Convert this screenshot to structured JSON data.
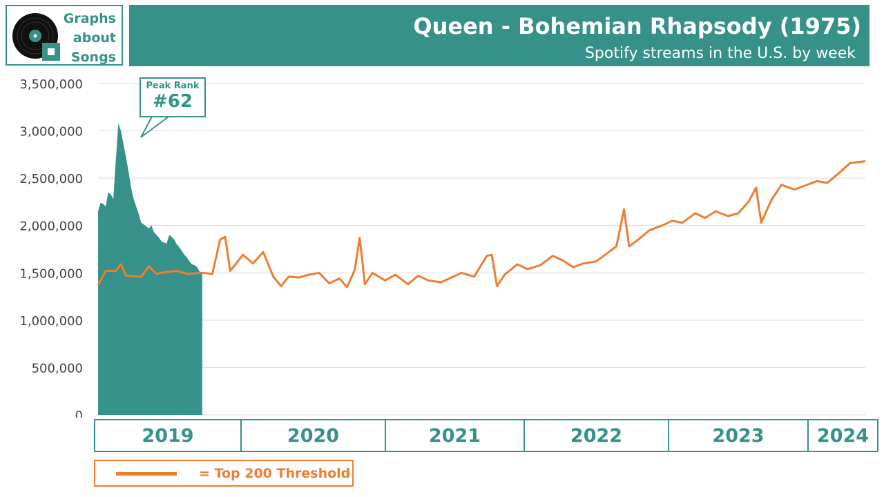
{
  "logo": {
    "line1": "Graphs",
    "line2": "about",
    "line3": "Songs",
    "icon": "vinyl-record-icon"
  },
  "header": {
    "title": "Queen - Bohemian Rhapsody (1975)",
    "subtitle": "Spotify streams in the U.S. by week"
  },
  "callout": {
    "label": "Peak Rank",
    "value": "#62"
  },
  "years": [
    "2019",
    "2020",
    "2021",
    "2022",
    "2023",
    "2024"
  ],
  "legend": {
    "text": "= Top 200 Threshold"
  },
  "colors": {
    "teal": "#359189",
    "orange": "#ED7D31",
    "grid": "#D9D9D9",
    "axis_text": "#404040"
  },
  "chart_data": {
    "type": "area",
    "title": "Queen - Bohemian Rhapsody (1975)",
    "subtitle": "Spotify streams in the U.S. by week",
    "ylim": [
      0,
      3500000
    ],
    "yticks": [
      0,
      500000,
      1000000,
      1500000,
      2000000,
      2500000,
      3000000,
      3500000
    ],
    "ytick_labels": [
      "0",
      "500,000",
      "1,000,000",
      "1,500,000",
      "2,000,000",
      "2,500,000",
      "3,000,000",
      "3,500,000"
    ],
    "x_start": "2019-01-04",
    "x_end": "2024-10-18",
    "grid": true,
    "series": [
      {
        "name": "streams",
        "kind": "area",
        "color": "#359189",
        "points": [
          [
            "2019-01-04",
            2150000
          ],
          [
            "2019-01-11",
            2240000
          ],
          [
            "2019-01-18",
            2230000
          ],
          [
            "2019-01-25",
            2200000
          ],
          [
            "2019-02-01",
            2350000
          ],
          [
            "2019-02-08",
            2330000
          ],
          [
            "2019-02-15",
            2280000
          ],
          [
            "2019-02-22",
            2700000
          ],
          [
            "2019-03-01",
            3080000
          ],
          [
            "2019-03-08",
            3000000
          ],
          [
            "2019-03-15",
            2860000
          ],
          [
            "2019-03-22",
            2720000
          ],
          [
            "2019-03-29",
            2570000
          ],
          [
            "2019-04-05",
            2400000
          ],
          [
            "2019-04-12",
            2280000
          ],
          [
            "2019-04-19",
            2200000
          ],
          [
            "2019-04-26",
            2120000
          ],
          [
            "2019-05-03",
            2030000
          ],
          [
            "2019-05-10",
            2010000
          ],
          [
            "2019-05-17",
            1990000
          ],
          [
            "2019-05-24",
            1970000
          ],
          [
            "2019-05-31",
            2000000
          ],
          [
            "2019-06-07",
            1930000
          ],
          [
            "2019-06-14",
            1900000
          ],
          [
            "2019-06-21",
            1870000
          ],
          [
            "2019-06-28",
            1830000
          ],
          [
            "2019-07-05",
            1820000
          ],
          [
            "2019-07-12",
            1810000
          ],
          [
            "2019-07-19",
            1900000
          ],
          [
            "2019-07-26",
            1880000
          ],
          [
            "2019-08-02",
            1850000
          ],
          [
            "2019-08-09",
            1800000
          ],
          [
            "2019-08-16",
            1770000
          ],
          [
            "2019-08-23",
            1730000
          ],
          [
            "2019-08-30",
            1690000
          ],
          [
            "2019-09-06",
            1660000
          ],
          [
            "2019-09-13",
            1620000
          ],
          [
            "2019-09-20",
            1590000
          ],
          [
            "2019-09-27",
            1580000
          ],
          [
            "2019-10-04",
            1560000
          ],
          [
            "2019-10-11",
            1510000
          ],
          [
            "2019-10-18",
            1500000
          ]
        ]
      },
      {
        "name": "Top 200 Threshold",
        "kind": "line",
        "color": "#ED7D31",
        "points": [
          [
            "2019-01-04",
            1370000
          ],
          [
            "2019-01-25",
            1520000
          ],
          [
            "2019-02-22",
            1520000
          ],
          [
            "2019-03-08",
            1590000
          ],
          [
            "2019-03-22",
            1470000
          ],
          [
            "2019-05-03",
            1460000
          ],
          [
            "2019-05-24",
            1570000
          ],
          [
            "2019-06-14",
            1490000
          ],
          [
            "2019-07-12",
            1510000
          ],
          [
            "2019-08-09",
            1520000
          ],
          [
            "2019-09-06",
            1490000
          ],
          [
            "2019-10-18",
            1500000
          ],
          [
            "2019-11-15",
            1490000
          ],
          [
            "2019-12-06",
            1850000
          ],
          [
            "2019-12-20",
            1880000
          ],
          [
            "2020-01-03",
            1520000
          ],
          [
            "2020-02-07",
            1690000
          ],
          [
            "2020-03-06",
            1600000
          ],
          [
            "2020-04-03",
            1720000
          ],
          [
            "2020-05-01",
            1460000
          ],
          [
            "2020-05-22",
            1360000
          ],
          [
            "2020-06-12",
            1460000
          ],
          [
            "2020-07-10",
            1450000
          ],
          [
            "2020-08-07",
            1480000
          ],
          [
            "2020-09-04",
            1500000
          ],
          [
            "2020-10-02",
            1390000
          ],
          [
            "2020-10-30",
            1440000
          ],
          [
            "2020-11-20",
            1350000
          ],
          [
            "2020-12-11",
            1530000
          ],
          [
            "2020-12-25",
            1870000
          ],
          [
            "2021-01-08",
            1380000
          ],
          [
            "2021-01-29",
            1500000
          ],
          [
            "2021-03-05",
            1420000
          ],
          [
            "2021-04-02",
            1480000
          ],
          [
            "2021-05-07",
            1380000
          ],
          [
            "2021-06-04",
            1470000
          ],
          [
            "2021-07-02",
            1420000
          ],
          [
            "2021-08-06",
            1400000
          ],
          [
            "2021-09-03",
            1450000
          ],
          [
            "2021-10-01",
            1500000
          ],
          [
            "2021-11-05",
            1460000
          ],
          [
            "2021-12-10",
            1680000
          ],
          [
            "2021-12-24",
            1690000
          ],
          [
            "2022-01-07",
            1360000
          ],
          [
            "2022-01-28",
            1480000
          ],
          [
            "2022-03-04",
            1590000
          ],
          [
            "2022-04-01",
            1540000
          ],
          [
            "2022-05-06",
            1580000
          ],
          [
            "2022-06-10",
            1680000
          ],
          [
            "2022-07-08",
            1630000
          ],
          [
            "2022-08-05",
            1560000
          ],
          [
            "2022-09-02",
            1600000
          ],
          [
            "2022-10-07",
            1620000
          ],
          [
            "2022-11-04",
            1700000
          ],
          [
            "2022-12-02",
            1780000
          ],
          [
            "2022-12-23",
            2170000
          ],
          [
            "2023-01-06",
            1780000
          ],
          [
            "2023-02-03",
            1860000
          ],
          [
            "2023-03-03",
            1950000
          ],
          [
            "2023-04-07",
            2000000
          ],
          [
            "2023-05-05",
            2050000
          ],
          [
            "2023-06-02",
            2030000
          ],
          [
            "2023-07-07",
            2130000
          ],
          [
            "2023-08-04",
            2080000
          ],
          [
            "2023-09-01",
            2150000
          ],
          [
            "2023-10-06",
            2100000
          ],
          [
            "2023-11-03",
            2130000
          ],
          [
            "2023-12-01",
            2250000
          ],
          [
            "2023-12-22",
            2400000
          ],
          [
            "2024-01-05",
            2030000
          ],
          [
            "2024-02-02",
            2270000
          ],
          [
            "2024-03-01",
            2430000
          ],
          [
            "2024-04-05",
            2380000
          ],
          [
            "2024-05-03",
            2420000
          ],
          [
            "2024-06-07",
            2470000
          ],
          [
            "2024-07-05",
            2450000
          ],
          [
            "2024-08-02",
            2540000
          ],
          [
            "2024-09-06",
            2660000
          ],
          [
            "2024-10-18",
            2680000
          ]
        ]
      }
    ]
  }
}
